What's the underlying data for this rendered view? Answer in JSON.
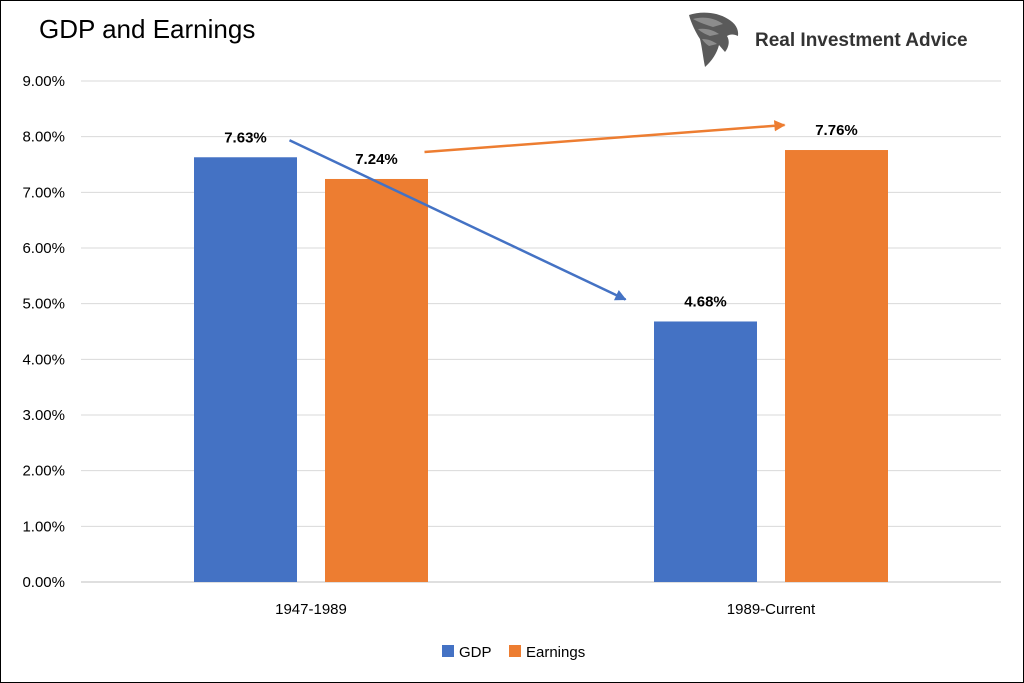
{
  "brand": {
    "name": "Real Investment Advice",
    "logo_icon": "eagle-head-icon"
  },
  "colors": {
    "gdp": "#4472C4",
    "earnings": "#ED7D31",
    "grid": "#D9D9D9",
    "axis": "#BFBFBF"
  },
  "chart_data": {
    "type": "bar",
    "title": "GDP and Earnings",
    "xlabel": "",
    "ylabel": "",
    "categories": [
      "1947-1989",
      "1989-Current"
    ],
    "series": [
      {
        "name": "GDP",
        "values": [
          7.63,
          4.68
        ],
        "labels": [
          "7.63%",
          "4.68%"
        ]
      },
      {
        "name": "Earnings",
        "values": [
          7.24,
          7.76
        ],
        "labels": [
          "7.24%",
          "7.76%"
        ]
      }
    ],
    "ylim": [
      0,
      9
    ],
    "yticks": [
      0,
      1,
      2,
      3,
      4,
      5,
      6,
      7,
      8,
      9
    ],
    "ytick_labels": [
      "0.00%",
      "1.00%",
      "2.00%",
      "3.00%",
      "4.00%",
      "5.00%",
      "6.00%",
      "7.00%",
      "8.00%",
      "9.00%"
    ],
    "grid": true,
    "legend_position": "bottom",
    "annotations": [
      {
        "type": "arrow",
        "series": "GDP",
        "from_category": "1947-1989",
        "to_category": "1989-Current"
      },
      {
        "type": "arrow",
        "series": "Earnings",
        "from_category": "1947-1989",
        "to_category": "1989-Current"
      }
    ]
  }
}
